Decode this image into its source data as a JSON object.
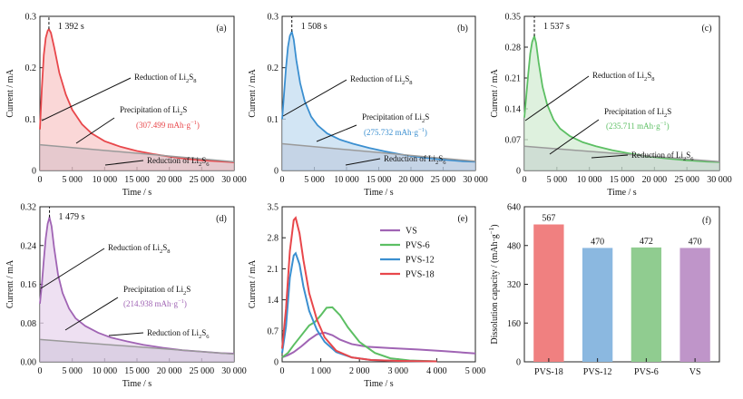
{
  "chart_data": [
    {
      "type": "area",
      "panel_label": "(a)",
      "peak_label": "1 392 s",
      "color": "#e8474b",
      "fill": "#f8c9c9",
      "xlabel": "Time / s",
      "ylabel": "Current / mA",
      "xlim": [
        0,
        30000
      ],
      "ylim": [
        0,
        0.3
      ],
      "x_ticks": [
        0,
        5000,
        10000,
        15000,
        20000,
        25000,
        30000
      ],
      "x_tick_labels": [
        "0",
        "5 000",
        "10 000",
        "15 000",
        "20 000",
        "25 000",
        "30 000"
      ],
      "y_ticks": [
        0,
        0.1,
        0.2,
        0.3
      ],
      "y_tick_labels": [
        "0",
        "0.1",
        "0.2",
        "0.3"
      ],
      "peak_x": 1392,
      "peak_y": 0.275,
      "curve": {
        "x": [
          0,
          300,
          600,
          900,
          1200,
          1392,
          1700,
          2200,
          3000,
          4000,
          5000,
          6500,
          8000,
          10000,
          12500,
          15000,
          17500,
          20000,
          22500,
          25000,
          27500,
          30000
        ],
        "y": [
          0.08,
          0.16,
          0.225,
          0.258,
          0.272,
          0.275,
          0.268,
          0.24,
          0.19,
          0.148,
          0.118,
          0.09,
          0.072,
          0.057,
          0.046,
          0.038,
          0.032,
          0.027,
          0.023,
          0.02,
          0.018,
          0.016
        ]
      },
      "baseline": {
        "x": [
          0,
          30000
        ],
        "y": [
          0.05,
          0.017
        ]
      },
      "annotations": [
        {
          "text": "Reduction of Li",
          "sub1": "2",
          "mid": "S",
          "sub2": "8"
        },
        {
          "text": "Precipitation of Li",
          "sub1": "2",
          "mid": "S",
          "sub2": ""
        },
        {
          "value": "(307.499 mAh·g",
          "sup": "−1",
          "end": ")"
        },
        {
          "text": "Reduction of Li",
          "sub1": "2",
          "mid": "S",
          "sub2": "6"
        }
      ]
    },
    {
      "type": "area",
      "panel_label": "(b)",
      "peak_label": "1 508 s",
      "color": "#3b8fd0",
      "fill": "#c3dcf0",
      "xlabel": "Time / s",
      "ylabel": "Current / mA",
      "xlim": [
        0,
        30000
      ],
      "ylim": [
        0,
        0.3
      ],
      "x_ticks": [
        0,
        5000,
        10000,
        15000,
        20000,
        25000,
        30000
      ],
      "x_tick_labels": [
        "0",
        "5 000",
        "10 000",
        "15 000",
        "20 000",
        "25 000",
        "30 000"
      ],
      "y_ticks": [
        0,
        0.1,
        0.2,
        0.3
      ],
      "y_tick_labels": [
        "0",
        "0.1",
        "0.2",
        "0.3"
      ],
      "peak_x": 1508,
      "peak_y": 0.27,
      "curve": {
        "x": [
          0,
          300,
          600,
          900,
          1200,
          1508,
          1800,
          2200,
          2800,
          3500,
          4500,
          5500,
          7000,
          9000,
          11000,
          13500,
          16000,
          19000,
          22000,
          25000,
          28000,
          30000
        ],
        "y": [
          0.1,
          0.15,
          0.2,
          0.24,
          0.262,
          0.27,
          0.255,
          0.215,
          0.17,
          0.135,
          0.105,
          0.088,
          0.072,
          0.06,
          0.052,
          0.044,
          0.037,
          0.03,
          0.025,
          0.021,
          0.018,
          0.017
        ]
      },
      "baseline": {
        "x": [
          0,
          30000
        ],
        "y": [
          0.052,
          0.018
        ]
      },
      "annotations": [
        {
          "text": "Reduction of Li",
          "sub1": "2",
          "mid": "S",
          "sub2": "8"
        },
        {
          "text": "Precipitation of Li",
          "sub1": "2",
          "mid": "S",
          "sub2": ""
        },
        {
          "value": "(275.732 mAh·g",
          "sup": "−1",
          "end": ")"
        },
        {
          "text": "Reduction of Li",
          "sub1": "2",
          "mid": "S",
          "sub2": "6"
        }
      ]
    },
    {
      "type": "area",
      "panel_label": "(c)",
      "peak_label": "1 537 s",
      "color": "#5cbf63",
      "fill": "#d3ecd3",
      "xlabel": "Time / s",
      "ylabel": "Current / mA",
      "xlim": [
        0,
        30000
      ],
      "ylim": [
        0,
        0.35
      ],
      "x_ticks": [
        0,
        5000,
        10000,
        15000,
        20000,
        25000,
        30000
      ],
      "x_tick_labels": [
        "0",
        "5 000",
        "10 000",
        "15 000",
        "20 000",
        "25 000",
        "30 000"
      ],
      "y_ticks": [
        0,
        0.07,
        0.14,
        0.21,
        0.28,
        0.35
      ],
      "y_tick_labels": [
        "0",
        "0.07",
        "0.14",
        "0.21",
        "0.28",
        "0.35"
      ],
      "peak_x": 1537,
      "peak_y": 0.305,
      "curve": {
        "x": [
          0,
          300,
          600,
          900,
          1200,
          1537,
          1800,
          2200,
          2800,
          3500,
          4500,
          5500,
          7000,
          9000,
          11000,
          13500,
          16000,
          19000,
          22000,
          25000,
          28000,
          30000
        ],
        "y": [
          0.12,
          0.17,
          0.22,
          0.265,
          0.292,
          0.305,
          0.29,
          0.245,
          0.19,
          0.15,
          0.115,
          0.095,
          0.078,
          0.064,
          0.055,
          0.046,
          0.039,
          0.032,
          0.027,
          0.023,
          0.02,
          0.019
        ]
      },
      "baseline": {
        "x": [
          0,
          30000
        ],
        "y": [
          0.055,
          0.02
        ]
      },
      "annotations": [
        {
          "text": "Reduction of Li",
          "sub1": "2",
          "mid": "S",
          "sub2": "8"
        },
        {
          "text": "Precipitation of Li",
          "sub1": "2",
          "mid": "S",
          "sub2": ""
        },
        {
          "value": "(235.711 mAh·g",
          "sup": "−1",
          "end": ")"
        },
        {
          "text": "Reduction of Li",
          "sub1": "2",
          "mid": "S",
          "sub2": "6"
        }
      ]
    },
    {
      "type": "area",
      "panel_label": "(d)",
      "peak_label": "1 479 s",
      "color": "#a064b4",
      "fill": "#e8d6ee",
      "xlabel": "Time / s",
      "ylabel": "Current / mA",
      "xlim": [
        0,
        30000
      ],
      "ylim": [
        0,
        0.32
      ],
      "x_ticks": [
        0,
        5000,
        10000,
        15000,
        20000,
        25000,
        30000
      ],
      "x_tick_labels": [
        "0",
        "5 000",
        "10 000",
        "15 000",
        "20 000",
        "25 000",
        "30 000"
      ],
      "y_ticks": [
        0,
        0.08,
        0.16,
        0.24,
        0.32
      ],
      "y_tick_labels": [
        "0.00",
        "0.08",
        "0.16",
        "0.24",
        "0.32"
      ],
      "peak_x": 1479,
      "peak_y": 0.298,
      "curve": {
        "x": [
          0,
          300,
          600,
          900,
          1200,
          1479,
          1800,
          2200,
          2800,
          3500,
          4500,
          5500,
          7000,
          9000,
          11000,
          13500,
          16000,
          19000,
          22000,
          25000,
          28000,
          30000
        ],
        "y": [
          0.12,
          0.16,
          0.21,
          0.255,
          0.285,
          0.298,
          0.28,
          0.235,
          0.18,
          0.142,
          0.11,
          0.09,
          0.074,
          0.06,
          0.05,
          0.042,
          0.035,
          0.029,
          0.024,
          0.021,
          0.018,
          0.017
        ]
      },
      "baseline": {
        "x": [
          0,
          30000
        ],
        "y": [
          0.046,
          0.016
        ]
      },
      "annotations": [
        {
          "text": "Reduction of Li",
          "sub1": "2",
          "mid": "S",
          "sub2": "8"
        },
        {
          "text": "Precipitation of Li",
          "sub1": "2",
          "mid": "S",
          "sub2": ""
        },
        {
          "value": "(214.938 mAh·g",
          "sup": "−1",
          "end": ")"
        },
        {
          "text": "Reduction of Li",
          "sub1": "2",
          "mid": "S",
          "sub2": "6"
        }
      ]
    },
    {
      "type": "line",
      "panel_label": "(e)",
      "xlabel": "Time / s",
      "ylabel": "Current / mA",
      "xlim": [
        0,
        5000
      ],
      "ylim": [
        0,
        3.5
      ],
      "x_ticks": [
        0,
        1000,
        2000,
        3000,
        4000,
        5000
      ],
      "x_tick_labels": [
        "0",
        "1 000",
        "2 000",
        "3 000",
        "4 000",
        "5 000"
      ],
      "y_ticks": [
        0,
        0.7,
        1.4,
        2.1,
        2.8,
        3.5
      ],
      "y_tick_labels": [
        "0",
        "0.7",
        "1.4",
        "2.1",
        "2.8",
        "3.5"
      ],
      "legend_position": "top-right",
      "series": [
        {
          "name": "VS",
          "color": "#a064b4",
          "x": [
            0,
            150,
            300,
            500,
            700,
            900,
            1100,
            1300,
            1500,
            1800,
            2200,
            2800,
            3500,
            4200,
            5000
          ],
          "y": [
            0.1,
            0.15,
            0.22,
            0.35,
            0.5,
            0.62,
            0.66,
            0.6,
            0.5,
            0.4,
            0.34,
            0.31,
            0.28,
            0.24,
            0.19
          ]
        },
        {
          "name": "PVS-6",
          "color": "#5cbf63",
          "x": [
            0,
            150,
            300,
            500,
            700,
            850,
            1000,
            1150,
            1300,
            1500,
            1700,
            2000,
            2400,
            2800,
            3300,
            4000
          ],
          "y": [
            0.1,
            0.2,
            0.38,
            0.6,
            0.82,
            0.9,
            1.05,
            1.22,
            1.23,
            1.05,
            0.78,
            0.45,
            0.2,
            0.08,
            0.03,
            0.01
          ]
        },
        {
          "name": "PVS-12",
          "color": "#3b8fd0",
          "x": [
            0,
            100,
            200,
            300,
            350,
            450,
            550,
            700,
            900,
            1100,
            1400,
            1800,
            2300,
            3000,
            4000
          ],
          "y": [
            0.2,
            0.8,
            1.9,
            2.4,
            2.45,
            2.2,
            1.7,
            1.15,
            0.72,
            0.45,
            0.22,
            0.1,
            0.04,
            0.02,
            0.01
          ]
        },
        {
          "name": "PVS-18",
          "color": "#e8474b",
          "x": [
            0,
            100,
            200,
            300,
            350,
            450,
            550,
            700,
            900,
            1100,
            1400,
            1800,
            2300,
            3000,
            4000
          ],
          "y": [
            0.3,
            1.2,
            2.5,
            3.2,
            3.25,
            2.9,
            2.3,
            1.55,
            0.95,
            0.55,
            0.25,
            0.1,
            0.04,
            0.02,
            0.01
          ]
        }
      ]
    },
    {
      "type": "bar",
      "panel_label": "(f)",
      "xlabel": "",
      "ylabel": "Dissolution capacity / (mAh·g",
      "ylabel_sup": "−1",
      "ylabel_end": ")",
      "ylim": [
        0,
        640
      ],
      "y_ticks": [
        0,
        160,
        320,
        480,
        640
      ],
      "y_tick_labels": [
        "0",
        "160",
        "320",
        "480",
        "640"
      ],
      "categories": [
        "PVS-18",
        "PVS-12",
        "PVS-6",
        "VS"
      ],
      "values": [
        567,
        470,
        472,
        470
      ],
      "value_labels": [
        "567",
        "470",
        "472",
        "470"
      ],
      "colors": [
        "#f08080",
        "#8bb8e0",
        "#90cc90",
        "#bf95c9"
      ]
    }
  ]
}
